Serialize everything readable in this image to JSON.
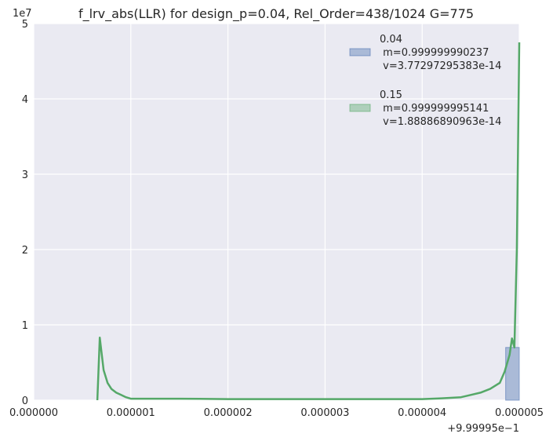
{
  "chart_data": {
    "type": "area",
    "title": "f_lrv_abs(LLR) for design_p=0.04, Rel_Order=438/1024 G=775",
    "xlabel": "",
    "ylabel": "",
    "x_offset_label": "+9.99995e−1",
    "y_multiplier_label": "1e7",
    "xlim": [
      0,
      5e-06
    ],
    "ylim": [
      0,
      50000000
    ],
    "x_ticks": [
      0,
      1e-06,
      2e-06,
      3e-06,
      4e-06,
      5e-06
    ],
    "x_tick_labels": [
      "0.000000",
      "0.000001",
      "0.000002",
      "0.000003",
      "0.000004",
      "0.000005"
    ],
    "y_ticks": [
      0,
      10000000,
      20000000,
      30000000,
      40000000,
      50000000
    ],
    "y_tick_labels": [
      "0",
      "1",
      "2",
      "3",
      "4",
      "5"
    ],
    "grid": true,
    "legend_position": "top-right",
    "series": [
      {
        "name": "0.04\n m=0.999999990237\n v=3.77297295383e-14",
        "color": "#4c72b0",
        "kind": "histogram",
        "bins": [
          {
            "x0": 4.86e-06,
            "x1": 5e-06,
            "value": 7000000
          }
        ]
      },
      {
        "name": "0.15\n m=0.999999995141\n v=1.88886890963e-14",
        "color": "#55a868",
        "kind": "kde",
        "x": [
          6.55e-07,
          6.8e-07,
          7.2e-07,
          7.6e-07,
          8e-07,
          8.5e-07,
          9e-07,
          9.5e-07,
          1e-06,
          1.175e-06,
          1.5e-06,
          2e-06,
          2.5e-06,
          3e-06,
          3.5e-06,
          4e-06,
          4.2e-06,
          4.4e-06,
          4.5e-06,
          4.6e-06,
          4.7e-06,
          4.8e-06,
          4.85e-06,
          4.9e-06,
          4.925e-06,
          4.95e-06,
          4.975e-06,
          5e-06
        ],
        "y": [
          0,
          8300000,
          4000000,
          2300000,
          1500000,
          1000000,
          700000,
          400000,
          200000,
          200000,
          200000,
          150000,
          150000,
          150000,
          150000,
          150000,
          250000,
          400000,
          700000,
          1000000,
          1500000,
          2300000,
          3800000,
          6000000,
          8200000,
          7000000,
          20000000,
          47500000
        ]
      }
    ]
  }
}
